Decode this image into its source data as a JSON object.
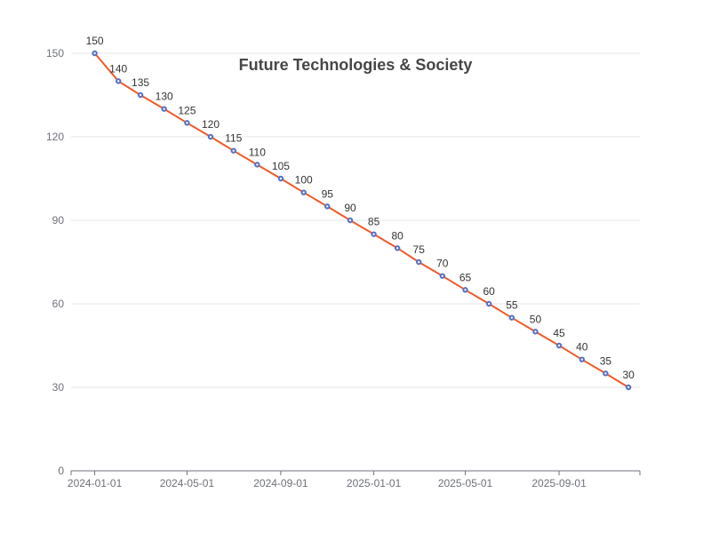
{
  "chart_data": {
    "type": "line",
    "title": "Future Technologies & Society",
    "xlabel": "",
    "ylabel": "",
    "ylim": [
      0,
      150
    ],
    "y_ticks": [
      0,
      30,
      60,
      90,
      120,
      150
    ],
    "x_ticks": [
      "2024-01-01",
      "2024-05-01",
      "2024-09-01",
      "2025-01-01",
      "2025-05-01",
      "2025-09-01"
    ],
    "grid": true,
    "colors": {
      "line": "#f05a28",
      "point": "#5470c6",
      "grid": "#e6e6e6",
      "axis": "#6e7079"
    },
    "x": [
      "2024-01-01",
      "2024-02-01",
      "2024-03-01",
      "2024-04-01",
      "2024-05-01",
      "2024-06-01",
      "2024-07-01",
      "2024-08-01",
      "2024-09-01",
      "2024-10-01",
      "2024-11-01",
      "2024-12-01",
      "2025-01-01",
      "2025-02-01",
      "2025-03-01",
      "2025-04-01",
      "2025-05-01",
      "2025-06-01",
      "2025-07-01",
      "2025-08-01",
      "2025-09-01",
      "2025-10-01",
      "2025-11-01",
      "2025-12-01"
    ],
    "series": [
      {
        "values": [
          150,
          140,
          135,
          130,
          125,
          120,
          115,
          110,
          105,
          100,
          95,
          90,
          85,
          80,
          75,
          70,
          65,
          60,
          55,
          50,
          45,
          40,
          35,
          30
        ]
      }
    ]
  }
}
